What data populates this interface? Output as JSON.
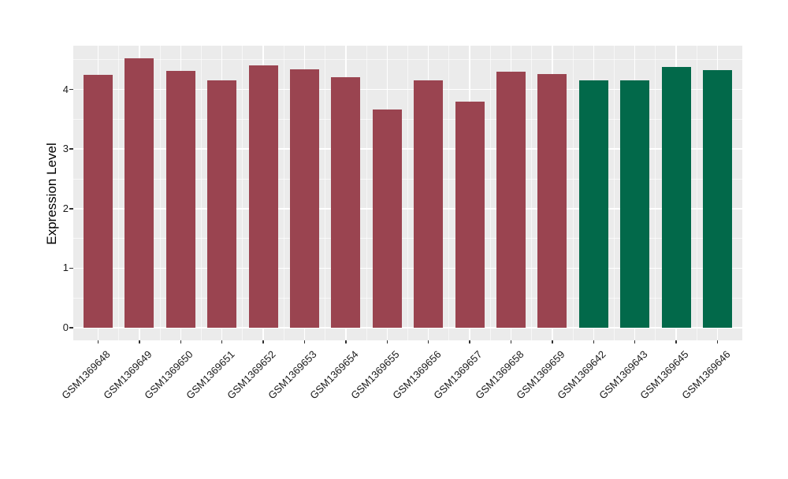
{
  "figure": {
    "background": "#FFFFFF",
    "panel_background": "#EBEBEB",
    "grid_color": "#FFFFFF",
    "axis_text_color": "#1A1A1A",
    "tick_mark_color": "#333333"
  },
  "chart_data": {
    "type": "bar",
    "title": "",
    "xlabel": "",
    "ylabel": "Expression Level",
    "categories": [
      "GSM1369648",
      "GSM1369649",
      "GSM1369650",
      "GSM1369651",
      "GSM1369652",
      "GSM1369653",
      "GSM1369654",
      "GSM1369655",
      "GSM1369656",
      "GSM1369657",
      "GSM1369658",
      "GSM1369659",
      "GSM1369642",
      "GSM1369643",
      "GSM1369645",
      "GSM1369646"
    ],
    "values": [
      4.24,
      4.52,
      4.31,
      4.15,
      4.4,
      4.34,
      4.21,
      3.66,
      4.15,
      3.8,
      4.3,
      4.26,
      4.15,
      4.15,
      4.38,
      4.32
    ],
    "bar_colors": [
      "#9A4450",
      "#9A4450",
      "#9A4450",
      "#9A4450",
      "#9A4450",
      "#9A4450",
      "#9A4450",
      "#9A4450",
      "#9A4450",
      "#9A4450",
      "#9A4450",
      "#9A4450",
      "#02694A",
      "#02694A",
      "#02694A",
      "#02694A"
    ],
    "palette": [
      "#9A4450",
      "#02694A"
    ],
    "yticks": [
      0,
      1,
      2,
      3,
      4
    ],
    "ylim": [
      -0.24,
      4.74
    ],
    "x_label_angle_deg": 45,
    "grid": "horizontal major+minor, vertical major at categories with minors between",
    "legend": "none"
  }
}
